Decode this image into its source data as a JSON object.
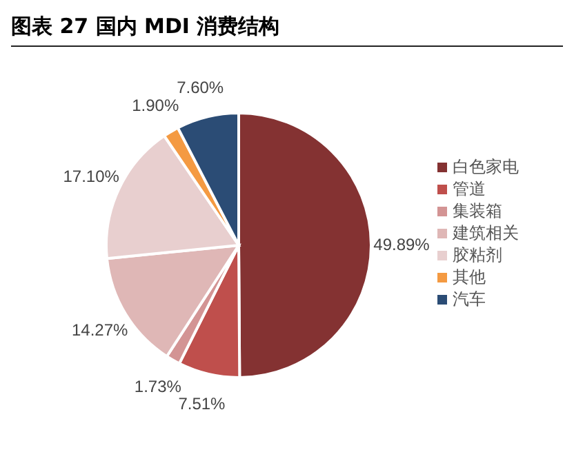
{
  "chart_data": {
    "type": "pie",
    "title": "图表 27 国内 MDI 消费结构",
    "categories": [
      "白色家电",
      "管道",
      "集装箱",
      "建筑相关",
      "胶粘剂",
      "其他",
      "汽车"
    ],
    "values": [
      49.89,
      7.51,
      1.73,
      14.27,
      17.1,
      1.9,
      7.6
    ],
    "value_labels": [
      "49.89%",
      "7.51%",
      "1.73%",
      "14.27%",
      "17.10%",
      "1.90%",
      "7.60%"
    ],
    "colors": [
      "#843232",
      "#bf4f4c",
      "#d39494",
      "#dfb7b6",
      "#e8cfcf",
      "#f49a42",
      "#2b4c75"
    ],
    "legend": "right"
  }
}
